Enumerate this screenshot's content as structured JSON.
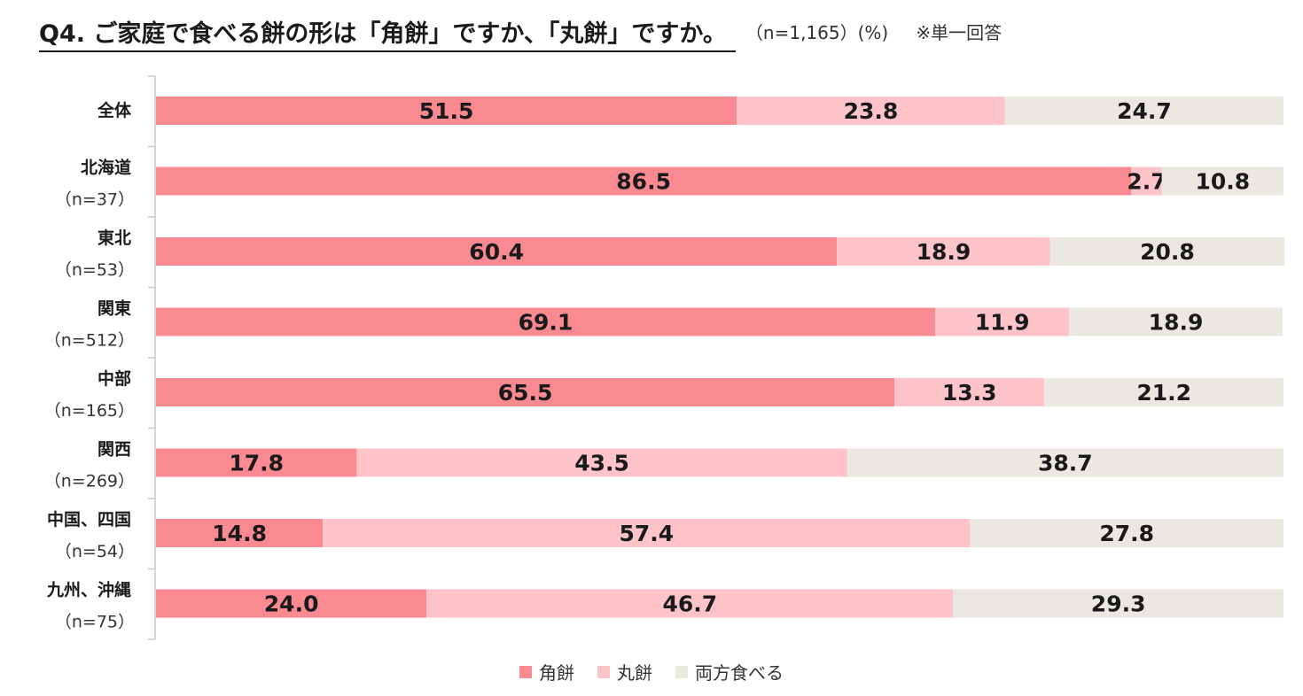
{
  "chart_data": {
    "type": "bar",
    "orientation": "horizontal",
    "stacked": true,
    "title": "Q4. ご家庭で食べる餅の形は「角餅」ですか、「丸餅」ですか。",
    "subtitle": "（n=1,165）(%)",
    "note": "※単一回答",
    "categories": [
      "全体",
      "北海道",
      "東北",
      "関東",
      "中部",
      "関西",
      "中国、四国",
      "九州、沖縄"
    ],
    "sample_sizes": [
      "",
      "（n=37）",
      "（n=53）",
      "（n=512）",
      "（n=165）",
      "（n=269）",
      "（n=54）",
      "（n=75）"
    ],
    "series": [
      {
        "name": "角餅",
        "color": "#FA8A92",
        "values": [
          51.5,
          86.5,
          60.4,
          69.1,
          65.5,
          17.8,
          14.8,
          24.0
        ]
      },
      {
        "name": "丸餅",
        "color": "#FEC4C9",
        "values": [
          23.8,
          2.7,
          18.9,
          11.9,
          13.3,
          43.5,
          57.4,
          46.7
        ]
      },
      {
        "name": "両方食べる",
        "color": "#EBE8E2",
        "values": [
          24.7,
          10.8,
          20.8,
          18.9,
          21.2,
          38.7,
          27.8,
          29.3
        ]
      }
    ],
    "xlim": [
      0,
      100
    ],
    "legend_position": "bottom",
    "grid": false
  }
}
